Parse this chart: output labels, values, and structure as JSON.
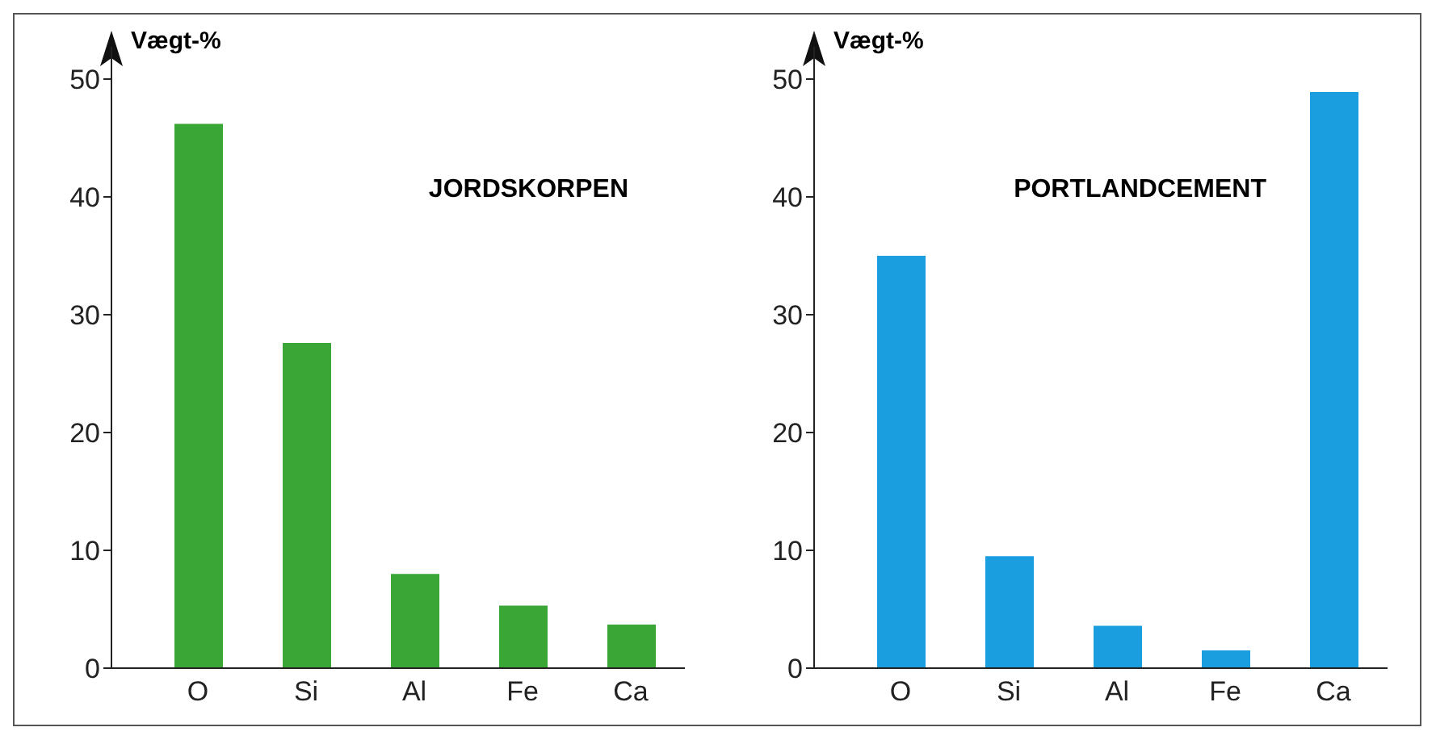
{
  "chart_data": [
    {
      "type": "bar",
      "title": "JORDSKORPEN",
      "ylabel": "Vægt-%",
      "categories": [
        "O",
        "Si",
        "Al",
        "Fe",
        "Ca"
      ],
      "values": [
        46.2,
        27.6,
        8.0,
        5.3,
        3.7
      ],
      "color": "#3aa635",
      "ylim": [
        0,
        50
      ],
      "yticks": [
        0,
        10,
        20,
        30,
        40,
        50
      ],
      "grid": false
    },
    {
      "type": "bar",
      "title": "PORTLANDCEMENT",
      "ylabel": "Vægt-%",
      "categories": [
        "O",
        "Si",
        "Al",
        "Fe",
        "Ca"
      ],
      "values": [
        35.0,
        9.5,
        3.6,
        1.5,
        48.9
      ],
      "color": "#1a9ee0",
      "ylim": [
        0,
        50
      ],
      "yticks": [
        0,
        10,
        20,
        30,
        40,
        50
      ],
      "grid": false
    }
  ]
}
